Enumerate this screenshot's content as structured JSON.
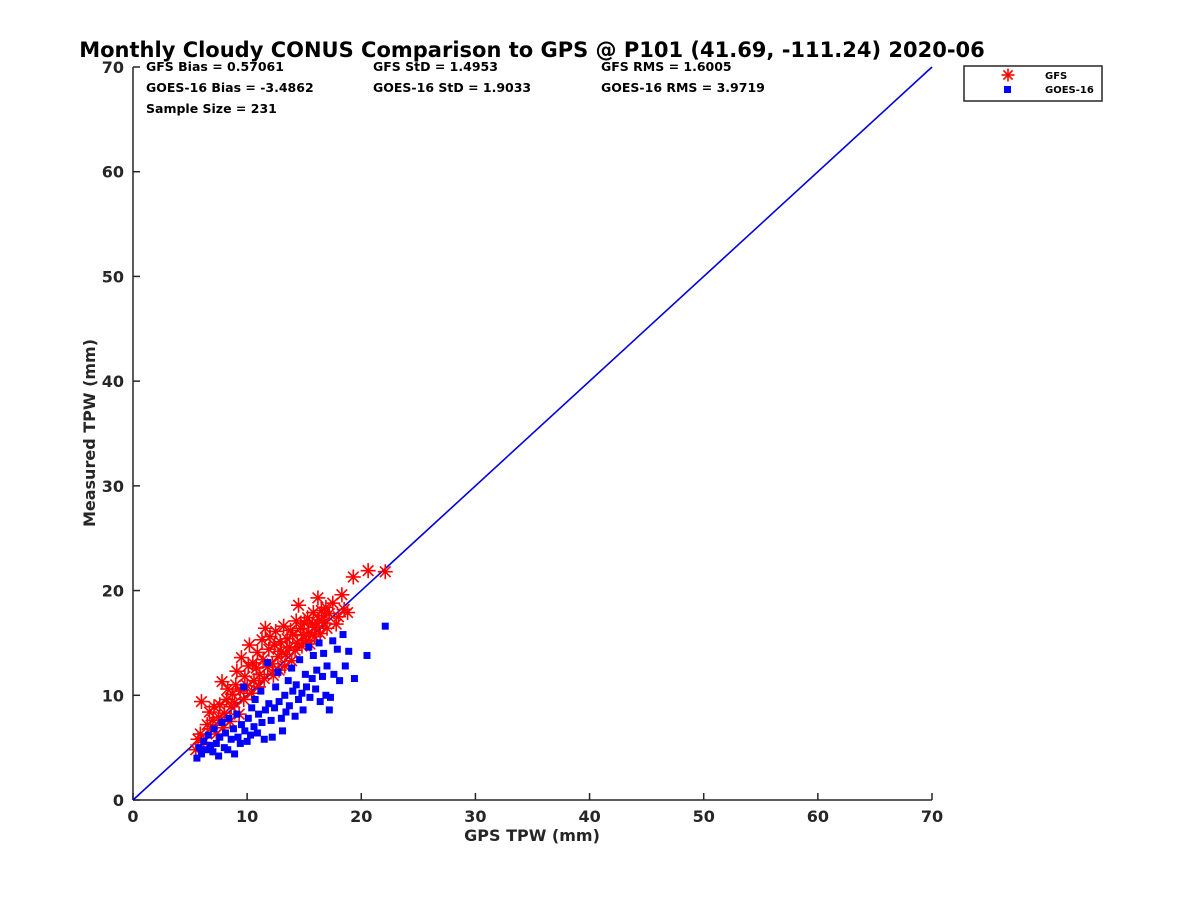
{
  "chart_data": {
    "type": "scatter",
    "title": "Monthly Cloudy CONUS Comparison to GPS @ P101 (41.69, -111.24) 2020-06",
    "xlabel": "GPS TPW (mm)",
    "ylabel": "Measured TPW (mm)",
    "xlim": [
      0,
      70
    ],
    "ylim": [
      0,
      70
    ],
    "xticks": [
      "0",
      "10",
      "20",
      "30",
      "40",
      "50",
      "60",
      "70"
    ],
    "yticks": [
      "0",
      "10",
      "20",
      "30",
      "40",
      "50",
      "60",
      "70"
    ],
    "grid": false,
    "legend_position": "top-right",
    "stats": {
      "gfs_bias": "GFS Bias = 0.57061",
      "gfs_std": "GFS StD = 1.4953",
      "gfs_rms": "GFS RMS = 1.6005",
      "goes_bias": "GOES-16 Bias = -3.4862",
      "goes_std": "GOES-16 StD = 1.9033",
      "goes_rms": "GOES-16 RMS = 3.9719",
      "sample_size": "Sample Size = 231"
    },
    "reference_line": {
      "x": [
        0,
        70
      ],
      "y": [
        0,
        70
      ],
      "color": "#0000dd"
    },
    "series": [
      {
        "name": "GFS",
        "marker": "asterisk",
        "color": "#ff0000",
        "points": [
          [
            5.5,
            4.8
          ],
          [
            5.7,
            5.8
          ],
          [
            5.9,
            6.3
          ],
          [
            6.0,
            9.4
          ],
          [
            6.2,
            5.5
          ],
          [
            6.5,
            7.2
          ],
          [
            6.7,
            8.4
          ],
          [
            6.8,
            6.8
          ],
          [
            7.0,
            7.6
          ],
          [
            7.1,
            8.9
          ],
          [
            7.3,
            6.3
          ],
          [
            7.5,
            7.9
          ],
          [
            7.6,
            9.1
          ],
          [
            7.8,
            11.3
          ],
          [
            7.9,
            6.9
          ],
          [
            8.0,
            8.3
          ],
          [
            8.2,
            9.6
          ],
          [
            8.3,
            10.6
          ],
          [
            8.5,
            7.5
          ],
          [
            8.6,
            8.9
          ],
          [
            8.7,
            10.1
          ],
          [
            8.9,
            9.3
          ],
          [
            9.0,
            11.0
          ],
          [
            9.1,
            12.3
          ],
          [
            9.3,
            8.2
          ],
          [
            9.4,
            10.4
          ],
          [
            9.5,
            13.6
          ],
          [
            9.7,
            9.6
          ],
          [
            9.8,
            11.8
          ],
          [
            10.0,
            10.9
          ],
          [
            10.1,
            12.8
          ],
          [
            10.2,
            14.8
          ],
          [
            10.4,
            10.2
          ],
          [
            10.5,
            13.1
          ],
          [
            10.6,
            11.4
          ],
          [
            10.8,
            12.6
          ],
          [
            10.9,
            14.1
          ],
          [
            11.0,
            10.8
          ],
          [
            11.1,
            12.0
          ],
          [
            11.3,
            15.3
          ],
          [
            11.4,
            13.4
          ],
          [
            11.5,
            11.6
          ],
          [
            11.6,
            16.4
          ],
          [
            11.8,
            12.7
          ],
          [
            11.9,
            14.4
          ],
          [
            12.0,
            15.6
          ],
          [
            12.2,
            13.0
          ],
          [
            12.3,
            11.9
          ],
          [
            12.4,
            14.8
          ],
          [
            12.5,
            16.1
          ],
          [
            12.7,
            13.7
          ],
          [
            12.8,
            12.4
          ],
          [
            12.9,
            15.1
          ],
          [
            13.0,
            14.2
          ],
          [
            13.2,
            16.6
          ],
          [
            13.3,
            12.8
          ],
          [
            13.4,
            13.9
          ],
          [
            13.5,
            15.4
          ],
          [
            13.7,
            14.6
          ],
          [
            13.8,
            16.2
          ],
          [
            13.9,
            13.3
          ],
          [
            14.0,
            15.8
          ],
          [
            14.2,
            14.3
          ],
          [
            14.3,
            17.1
          ],
          [
            14.4,
            15.0
          ],
          [
            14.5,
            18.6
          ],
          [
            14.7,
            16.4
          ],
          [
            14.8,
            14.7
          ],
          [
            14.9,
            15.7
          ],
          [
            15.0,
            16.9
          ],
          [
            15.2,
            15.2
          ],
          [
            15.3,
            17.4
          ],
          [
            15.4,
            16.0
          ],
          [
            15.5,
            14.9
          ],
          [
            15.7,
            16.8
          ],
          [
            15.8,
            17.9
          ],
          [
            15.9,
            15.6
          ],
          [
            16.0,
            16.5
          ],
          [
            16.2,
            19.3
          ],
          [
            16.3,
            17.2
          ],
          [
            16.4,
            15.9
          ],
          [
            16.5,
            18.1
          ],
          [
            16.7,
            16.9
          ],
          [
            16.8,
            17.6
          ],
          [
            16.9,
            18.4
          ],
          [
            17.0,
            16.4
          ],
          [
            17.2,
            17.8
          ],
          [
            17.5,
            18.8
          ],
          [
            17.8,
            16.8
          ],
          [
            18.0,
            17.5
          ],
          [
            18.3,
            19.6
          ],
          [
            18.5,
            18.2
          ],
          [
            18.8,
            17.9
          ],
          [
            19.3,
            21.3
          ],
          [
            20.6,
            21.9
          ],
          [
            22.1,
            21.8
          ]
        ]
      },
      {
        "name": "GOES-16",
        "marker": "square",
        "color": "#0000ff",
        "points": [
          [
            5.6,
            4.0
          ],
          [
            5.8,
            5.0
          ],
          [
            6.0,
            4.4
          ],
          [
            6.2,
            5.6
          ],
          [
            6.4,
            4.8
          ],
          [
            6.6,
            6.2
          ],
          [
            6.8,
            5.2
          ],
          [
            7.0,
            4.6
          ],
          [
            7.1,
            6.8
          ],
          [
            7.3,
            5.4
          ],
          [
            7.5,
            4.2
          ],
          [
            7.6,
            6.0
          ],
          [
            7.8,
            7.4
          ],
          [
            8.0,
            5.0
          ],
          [
            8.1,
            6.4
          ],
          [
            8.3,
            4.8
          ],
          [
            8.4,
            7.8
          ],
          [
            8.6,
            5.8
          ],
          [
            8.8,
            6.8
          ],
          [
            8.9,
            4.4
          ],
          [
            9.1,
            8.2
          ],
          [
            9.2,
            6.0
          ],
          [
            9.4,
            5.4
          ],
          [
            9.5,
            7.2
          ],
          [
            9.7,
            10.8
          ],
          [
            9.8,
            6.6
          ],
          [
            10.0,
            5.6
          ],
          [
            10.1,
            7.8
          ],
          [
            10.3,
            6.2
          ],
          [
            10.4,
            8.8
          ],
          [
            10.6,
            7.0
          ],
          [
            10.7,
            9.6
          ],
          [
            10.9,
            6.4
          ],
          [
            11.0,
            8.2
          ],
          [
            11.2,
            10.4
          ],
          [
            11.3,
            7.4
          ],
          [
            11.5,
            5.8
          ],
          [
            11.6,
            8.6
          ],
          [
            11.8,
            13.1
          ],
          [
            11.9,
            9.2
          ],
          [
            12.1,
            7.6
          ],
          [
            12.2,
            6.0
          ],
          [
            12.4,
            8.8
          ],
          [
            12.5,
            10.8
          ],
          [
            12.7,
            12.2
          ],
          [
            12.8,
            9.4
          ],
          [
            13.0,
            7.8
          ],
          [
            13.1,
            6.6
          ],
          [
            13.3,
            10.0
          ],
          [
            13.4,
            8.4
          ],
          [
            13.6,
            11.4
          ],
          [
            13.7,
            9.0
          ],
          [
            13.9,
            12.6
          ],
          [
            14.0,
            10.4
          ],
          [
            14.2,
            8.0
          ],
          [
            14.3,
            11.0
          ],
          [
            14.5,
            9.6
          ],
          [
            14.6,
            13.4
          ],
          [
            14.8,
            10.2
          ],
          [
            14.9,
            8.6
          ],
          [
            15.1,
            12.0
          ],
          [
            15.2,
            10.8
          ],
          [
            15.4,
            14.6
          ],
          [
            15.5,
            9.8
          ],
          [
            15.7,
            11.6
          ],
          [
            15.8,
            13.8
          ],
          [
            16.0,
            10.6
          ],
          [
            16.1,
            12.4
          ],
          [
            16.3,
            15.0
          ],
          [
            16.4,
            9.4
          ],
          [
            16.6,
            11.8
          ],
          [
            16.7,
            14.0
          ],
          [
            16.9,
            10.0
          ],
          [
            17.0,
            12.8
          ],
          [
            17.2,
            8.6
          ],
          [
            17.3,
            9.8
          ],
          [
            17.5,
            15.2
          ],
          [
            17.6,
            12.0
          ],
          [
            17.9,
            14.4
          ],
          [
            18.1,
            11.4
          ],
          [
            18.4,
            15.8
          ],
          [
            18.6,
            12.8
          ],
          [
            18.9,
            14.2
          ],
          [
            19.4,
            11.6
          ],
          [
            20.5,
            13.8
          ],
          [
            22.1,
            16.6
          ]
        ]
      }
    ]
  }
}
